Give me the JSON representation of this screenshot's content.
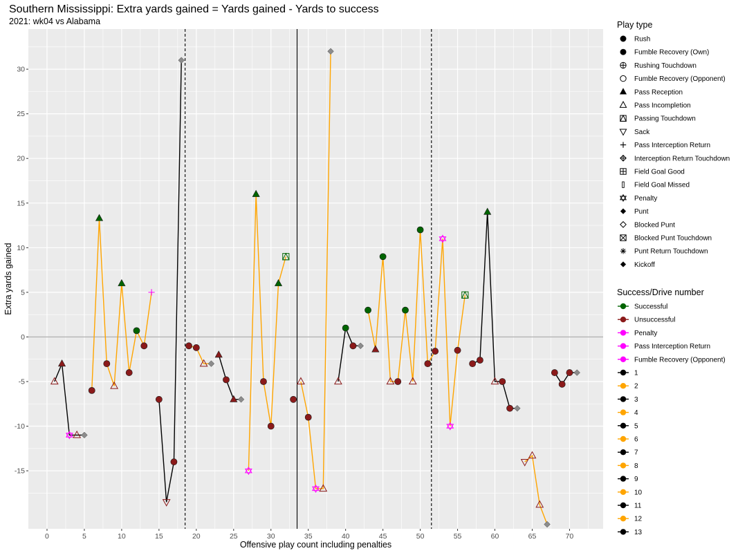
{
  "chart_data": {
    "type": "scatter",
    "title": "Southern Mississippi: Extra yards gained = Yards gained - Yards to success",
    "subtitle": "2021: wk04 vs Alabama",
    "xlabel": "Offensive play count including penalties",
    "ylabel": "Extra yards gained",
    "xlim": [
      -2.5,
      74.5
    ],
    "ylim": [
      -21.5,
      34.5
    ],
    "xticks": [
      "0",
      "5",
      "10",
      "15",
      "20",
      "25",
      "30",
      "35",
      "40",
      "45",
      "50",
      "55",
      "60",
      "65",
      "70"
    ],
    "yticks": [
      "-15",
      "-10",
      "-5",
      "0",
      "5",
      "10",
      "15",
      "20",
      "25",
      "30"
    ],
    "vlines": [
      {
        "x": 18.5,
        "style": "dashed"
      },
      {
        "x": 33.5,
        "style": "solid"
      },
      {
        "x": 51.5,
        "style": "dashed"
      }
    ],
    "legend_play_type": {
      "title": "Play type",
      "items": [
        "Rush",
        "Fumble Recovery (Own)",
        "Rushing Touchdown",
        "Fumble Recovery (Opponent)",
        "Pass Reception",
        "Pass Incompletion",
        "Passing Touchdown",
        "Sack",
        "Pass Interception Return",
        "Interception Return Touchdown",
        "Field Goal Good",
        "Field Goal Missed",
        "Penalty",
        "Punt",
        "Blocked Punt",
        "Blocked Punt Touchdown",
        "Punt Return Touchdown",
        "Kickoff"
      ]
    },
    "legend_success": {
      "title": "Success/Drive number",
      "items": [
        {
          "label": "Successful",
          "color": "#006400"
        },
        {
          "label": "Unsuccessful",
          "color": "#8b1a1a"
        },
        {
          "label": "Penalty",
          "color": "#ff00ff"
        },
        {
          "label": "Pass Interception Return",
          "color": "#ff00ff"
        },
        {
          "label": "Fumble Recovery (Opponent)",
          "color": "#ff00ff"
        },
        {
          "label": "1",
          "color": "#000000"
        },
        {
          "label": "2",
          "color": "#ffa500"
        },
        {
          "label": "3",
          "color": "#000000"
        },
        {
          "label": "4",
          "color": "#ffa500"
        },
        {
          "label": "5",
          "color": "#000000"
        },
        {
          "label": "6",
          "color": "#ffa500"
        },
        {
          "label": "7",
          "color": "#000000"
        },
        {
          "label": "8",
          "color": "#ffa500"
        },
        {
          "label": "9",
          "color": "#000000"
        },
        {
          "label": "10",
          "color": "#ffa500"
        },
        {
          "label": "11",
          "color": "#000000"
        },
        {
          "label": "12",
          "color": "#ffa500"
        },
        {
          "label": "13",
          "color": "#000000"
        }
      ]
    },
    "drives": [
      {
        "drive": 1,
        "color": "#000000",
        "points": [
          {
            "x": 1,
            "y": -5,
            "play": "Pass Incompletion",
            "result": "Unsuccessful"
          },
          {
            "x": 2,
            "y": -3,
            "play": "Pass Reception",
            "result": "Unsuccessful"
          },
          {
            "x": 3,
            "y": -11,
            "play": "Penalty",
            "result": "Penalty"
          },
          {
            "x": 4,
            "y": -11,
            "play": "Pass Incompletion",
            "result": "Unsuccessful"
          },
          {
            "x": 5,
            "y": -11,
            "play": "Punt",
            "result": "Unsuccessful"
          }
        ]
      },
      {
        "drive": 2,
        "color": "#ffa500",
        "points": [
          {
            "x": 6,
            "y": -6,
            "play": "Rush",
            "result": "Unsuccessful"
          },
          {
            "x": 7,
            "y": 13.3,
            "play": "Pass Reception",
            "result": "Successful"
          },
          {
            "x": 8,
            "y": -3,
            "play": "Rush",
            "result": "Unsuccessful"
          },
          {
            "x": 9,
            "y": -5.5,
            "play": "Pass Incompletion",
            "result": "Unsuccessful"
          },
          {
            "x": 10,
            "y": 6,
            "play": "Pass Reception",
            "result": "Successful"
          },
          {
            "x": 11,
            "y": -4,
            "play": "Rush",
            "result": "Unsuccessful"
          },
          {
            "x": 12,
            "y": 0.7,
            "play": "Rush",
            "result": "Successful"
          },
          {
            "x": 13,
            "y": -1,
            "play": "Rush",
            "result": "Unsuccessful"
          },
          {
            "x": 14,
            "y": 5,
            "play": "Pass Interception Return",
            "result": "Pass Interception Return"
          }
        ]
      },
      {
        "drive": 3,
        "color": "#000000",
        "points": [
          {
            "x": 15,
            "y": -7,
            "play": "Rush",
            "result": "Unsuccessful"
          },
          {
            "x": 16,
            "y": -18.5,
            "play": "Sack",
            "result": "Unsuccessful"
          },
          {
            "x": 17,
            "y": -14,
            "play": "Rush",
            "result": "Unsuccessful"
          },
          {
            "x": 18,
            "y": 31,
            "play": "Punt",
            "result": "Unsuccessful"
          }
        ]
      },
      {
        "drive": 4,
        "color": "#ffa500",
        "points": [
          {
            "x": 19,
            "y": -1,
            "play": "Rush",
            "result": "Unsuccessful"
          },
          {
            "x": 20,
            "y": -1.2,
            "play": "Rush",
            "result": "Unsuccessful"
          },
          {
            "x": 21,
            "y": -3,
            "play": "Pass Incompletion",
            "result": "Unsuccessful"
          },
          {
            "x": 22,
            "y": -3,
            "play": "Punt",
            "result": "Unsuccessful"
          }
        ]
      },
      {
        "drive": 5,
        "color": "#000000",
        "points": [
          {
            "x": 23,
            "y": -2,
            "play": "Pass Reception",
            "result": "Unsuccessful"
          },
          {
            "x": 24,
            "y": -4.8,
            "play": "Rush",
            "result": "Unsuccessful"
          },
          {
            "x": 25,
            "y": -7,
            "play": "Pass Reception",
            "result": "Unsuccessful"
          },
          {
            "x": 26,
            "y": -7,
            "play": "Punt",
            "result": "Unsuccessful"
          }
        ]
      },
      {
        "drive": 6,
        "color": "#ffa500",
        "points": [
          {
            "x": 27,
            "y": -15,
            "play": "Penalty",
            "result": "Penalty"
          },
          {
            "x": 28,
            "y": 16,
            "play": "Pass Reception",
            "result": "Successful"
          },
          {
            "x": 29,
            "y": -5,
            "play": "Rush",
            "result": "Unsuccessful"
          },
          {
            "x": 30,
            "y": -10,
            "play": "Rush",
            "result": "Unsuccessful"
          },
          {
            "x": 31,
            "y": 6,
            "play": "Pass Reception",
            "result": "Successful"
          },
          {
            "x": 32,
            "y": 9,
            "play": "Passing Touchdown",
            "result": "Successful"
          }
        ]
      },
      {
        "drive": 7,
        "color": "#000000",
        "points": [
          {
            "x": 33,
            "y": -7,
            "play": "Rush",
            "result": "Unsuccessful"
          }
        ]
      },
      {
        "drive": 8,
        "color": "#ffa500",
        "points": [
          {
            "x": 34,
            "y": -5,
            "play": "Pass Incompletion",
            "result": "Unsuccessful"
          },
          {
            "x": 35,
            "y": -9,
            "play": "Rush",
            "result": "Unsuccessful"
          },
          {
            "x": 36,
            "y": -17,
            "play": "Penalty",
            "result": "Penalty"
          },
          {
            "x": 37,
            "y": -17,
            "play": "Pass Incompletion",
            "result": "Unsuccessful"
          },
          {
            "x": 38,
            "y": 32,
            "play": "Punt",
            "result": "Unsuccessful"
          }
        ]
      },
      {
        "drive": 9,
        "color": "#000000",
        "points": [
          {
            "x": 39,
            "y": -5,
            "play": "Pass Incompletion",
            "result": "Unsuccessful"
          },
          {
            "x": 40,
            "y": 1,
            "play": "Rush",
            "result": "Successful"
          },
          {
            "x": 41,
            "y": -1,
            "play": "Rush",
            "result": "Unsuccessful"
          },
          {
            "x": 42,
            "y": -1,
            "play": "Punt",
            "result": "Unsuccessful"
          }
        ]
      },
      {
        "drive": 10,
        "color": "#ffa500",
        "points": [
          {
            "x": 43,
            "y": 3,
            "play": "Rush",
            "result": "Successful"
          },
          {
            "x": 44,
            "y": -1.4,
            "play": "Pass Reception",
            "result": "Unsuccessful"
          },
          {
            "x": 45,
            "y": 9,
            "play": "Rush",
            "result": "Successful"
          },
          {
            "x": 46,
            "y": -5,
            "play": "Pass Incompletion",
            "result": "Unsuccessful"
          },
          {
            "x": 47,
            "y": -5,
            "play": "Rush",
            "result": "Unsuccessful"
          },
          {
            "x": 48,
            "y": 3,
            "play": "Rush",
            "result": "Successful"
          },
          {
            "x": 49,
            "y": -5,
            "play": "Pass Incompletion",
            "result": "Unsuccessful"
          },
          {
            "x": 50,
            "y": 12,
            "play": "Rush",
            "result": "Successful"
          },
          {
            "x": 51,
            "y": -3,
            "play": "Rush",
            "result": "Unsuccessful"
          },
          {
            "x": 52,
            "y": -1.6,
            "play": "Rush",
            "result": "Unsuccessful"
          },
          {
            "x": 53,
            "y": 11,
            "play": "Penalty",
            "result": "Penalty"
          },
          {
            "x": 54,
            "y": -10,
            "play": "Penalty",
            "result": "Penalty"
          },
          {
            "x": 55,
            "y": -1.5,
            "play": "Rush",
            "result": "Unsuccessful"
          },
          {
            "x": 56,
            "y": 4.7,
            "play": "Passing Touchdown",
            "result": "Successful"
          }
        ]
      },
      {
        "drive": 11,
        "color": "#000000",
        "points": [
          {
            "x": 57,
            "y": -3,
            "play": "Rush",
            "result": "Unsuccessful"
          },
          {
            "x": 58,
            "y": -2.6,
            "play": "Rush",
            "result": "Unsuccessful"
          },
          {
            "x": 59,
            "y": 14,
            "play": "Pass Reception",
            "result": "Successful"
          },
          {
            "x": 60,
            "y": -5,
            "play": "Pass Incompletion",
            "result": "Unsuccessful"
          },
          {
            "x": 61,
            "y": -5,
            "play": "Rush",
            "result": "Unsuccessful"
          },
          {
            "x": 62,
            "y": -8,
            "play": "Rush",
            "result": "Unsuccessful"
          },
          {
            "x": 63,
            "y": -8,
            "play": "Punt",
            "result": "Unsuccessful"
          }
        ]
      },
      {
        "drive": 12,
        "color": "#ffa500",
        "points": [
          {
            "x": 64,
            "y": -14,
            "play": "Sack",
            "result": "Unsuccessful"
          },
          {
            "x": 65,
            "y": -13.3,
            "play": "Pass Incompletion",
            "result": "Unsuccessful"
          },
          {
            "x": 66,
            "y": -18.8,
            "play": "Pass Incompletion",
            "result": "Unsuccessful"
          },
          {
            "x": 67,
            "y": -21,
            "play": "Punt",
            "result": "Unsuccessful"
          }
        ]
      },
      {
        "drive": 13,
        "color": "#000000",
        "points": [
          {
            "x": 68,
            "y": -4,
            "play": "Rush",
            "result": "Unsuccessful"
          },
          {
            "x": 69,
            "y": -5.3,
            "play": "Rush",
            "result": "Unsuccessful"
          },
          {
            "x": 70,
            "y": -4,
            "play": "Rush",
            "result": "Unsuccessful"
          },
          {
            "x": 71,
            "y": -4,
            "play": "Punt",
            "result": "Unsuccessful"
          }
        ]
      }
    ]
  }
}
